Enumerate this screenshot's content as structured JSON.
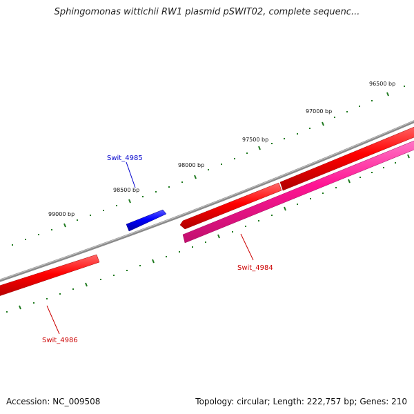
{
  "title": "Sphingomonas wittichii RW1 plasmid pSWIT02, complete sequenc...",
  "footer": {
    "accession": "Accession: NC_009508",
    "summary": "Topology: circular; Length: 222,757 bp; Genes: 210"
  },
  "colors": {
    "backbone": "#808080",
    "cds_forward": "#ff0000",
    "cds_reverse": "#ff1493",
    "cds_highlight": "#0000ff",
    "tick": "#1f7a1f",
    "label_red": "#cc0000",
    "label_blue": "#0000cc"
  },
  "ticks": {
    "labels": [
      "96500 bp",
      "97000 bp",
      "97500 bp",
      "98000 bp",
      "98500 bp",
      "99000 bp"
    ]
  },
  "genes": [
    {
      "name": "Swit_4985",
      "color": "blue"
    },
    {
      "name": "Swit_4984",
      "color": "red"
    },
    {
      "name": "Swit_4986",
      "color": "red"
    }
  ]
}
